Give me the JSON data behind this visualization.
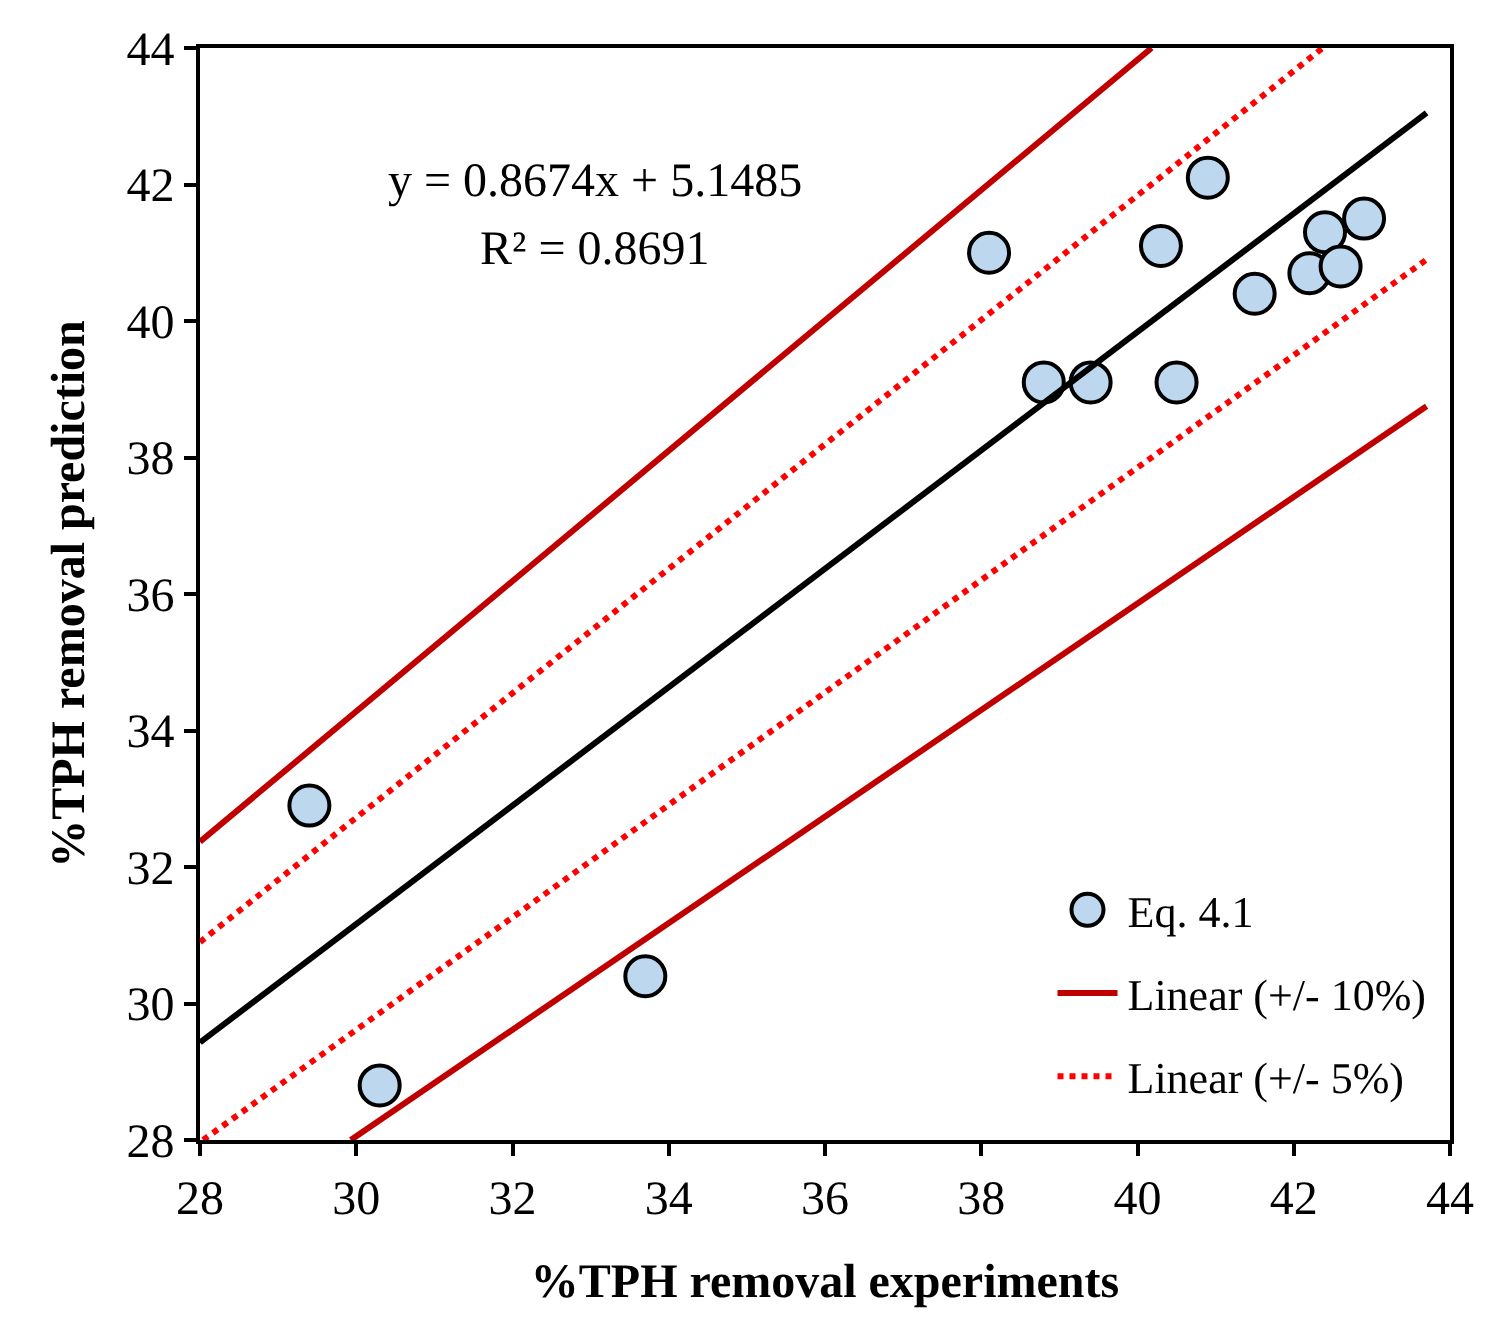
{
  "chart_data": {
    "type": "scatter",
    "xlabel": "%TPH removal experiments",
    "ylabel": "%TPH removal prediction",
    "xlim": [
      28,
      44
    ],
    "xticks": [
      28,
      30,
      32,
      34,
      36,
      38,
      40,
      42,
      44
    ],
    "ylim": [
      28,
      44
    ],
    "yticks": [
      28,
      30,
      32,
      34,
      36,
      38,
      40,
      42,
      44
    ],
    "legend": "bottom right",
    "annotations": [
      "y = 0.8674x + 5.1485",
      "R² = 0.8691"
    ],
    "series": [
      {
        "name": "Eq. 4.1",
        "marker": "circle",
        "color": "#bdd7ee",
        "x": [
          29.4,
          30.3,
          33.7,
          38.1,
          38.8,
          39.4,
          40.5,
          40.3,
          40.9,
          41.5,
          42.2,
          42.4,
          42.6,
          42.9
        ],
        "values": [
          32.9,
          28.8,
          30.4,
          41.0,
          39.1,
          39.1,
          39.1,
          41.1,
          42.1,
          40.4,
          40.7,
          41.3,
          40.8,
          41.5
        ]
      },
      {
        "type": "line",
        "marker": "none",
        "line_style": "solid",
        "color": "#000000",
        "x": [
          28,
          43.7
        ],
        "values": [
          29.43,
          43.05
        ]
      },
      {
        "name": "Linear (+/- 10%)",
        "type": "line",
        "marker": "none",
        "line_style": "solid",
        "color": "#c00000",
        "x": [
          28,
          40.18
        ],
        "values": [
          32.37,
          44
        ]
      },
      {
        "type": "line",
        "marker": "none",
        "line_style": "solid",
        "color": "#c00000",
        "x": [
          29.93,
          43.7
        ],
        "values": [
          28,
          38.75
        ]
      },
      {
        "name": "Linear (+/- 5%)",
        "type": "line",
        "marker": "none",
        "line_style": "dotted",
        "color": "#ff0000",
        "x": [
          28,
          42.37
        ],
        "values": [
          30.9,
          44
        ]
      },
      {
        "type": "line",
        "marker": "none",
        "line_style": "dotted",
        "color": "#ff0000",
        "x": [
          28.04,
          43.7
        ],
        "values": [
          28,
          40.9
        ]
      }
    ]
  }
}
